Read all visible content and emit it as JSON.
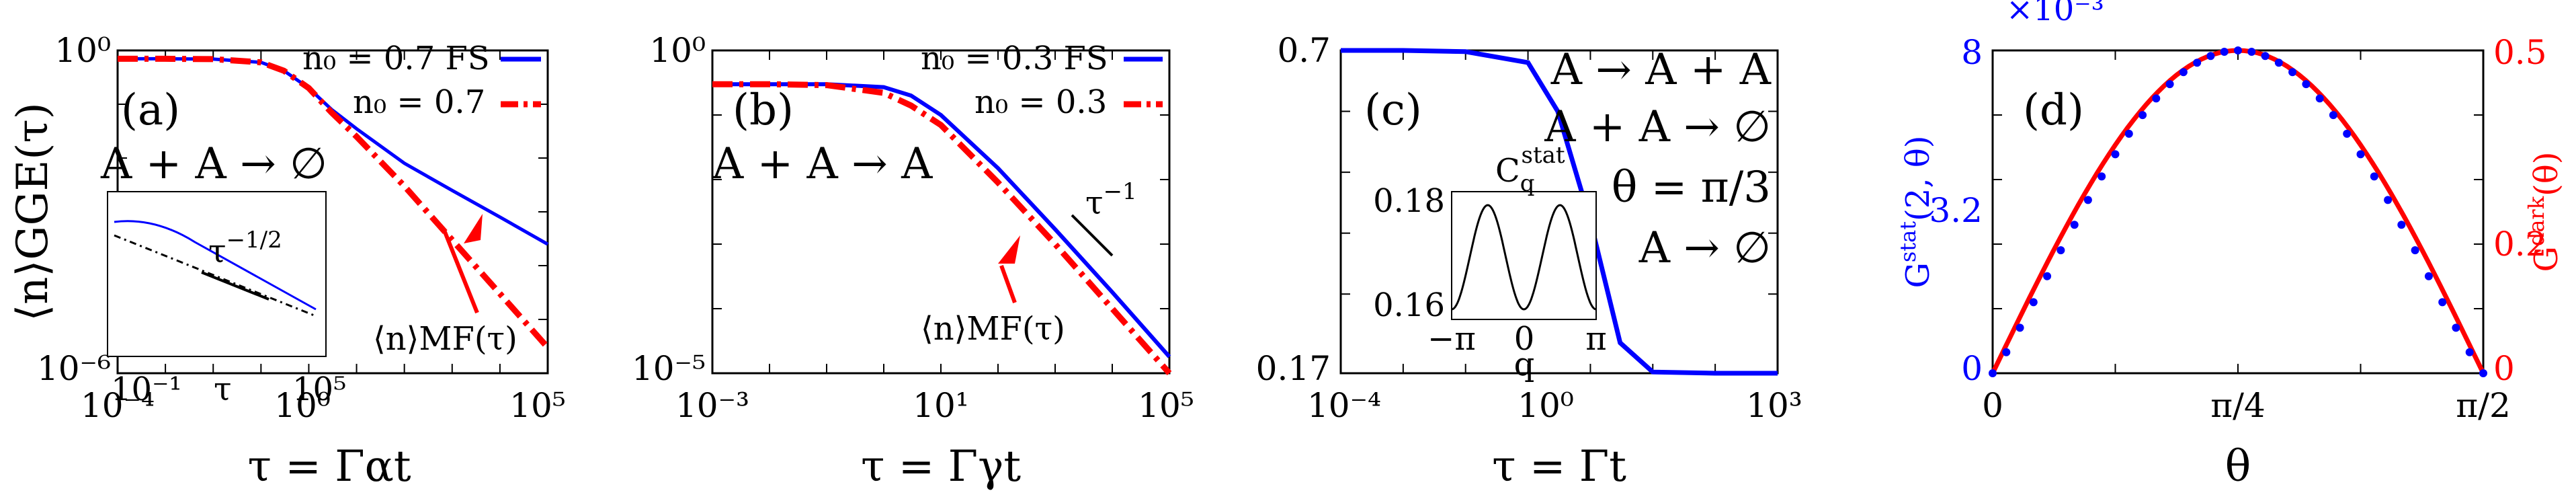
{
  "chart_data": [
    {
      "panel": "(a)",
      "type": "line",
      "scale": "log-log",
      "xlabel": "τ = Γαt",
      "ylabel": "⟨n⟩GGE(τ)",
      "xlim": [
        0.0001,
        100000
      ],
      "ylim": [
        1e-06,
        1
      ],
      "xticks": [
        "10⁻⁴",
        "10⁰",
        "10⁵"
      ],
      "yticks": [
        "10⁰",
        "10⁻⁶"
      ],
      "reaction": "A + A → ∅",
      "series": [
        {
          "name": "n₀ = 0.7 FS",
          "color": "#0000ff",
          "style": "solid",
          "x": [
            0.0001,
            0.001,
            0.01,
            0.1,
            0.3,
            1,
            3,
            10,
            100,
            1000,
            10000,
            100000
          ],
          "y": [
            0.7,
            0.7,
            0.69,
            0.6,
            0.42,
            0.2,
            0.08,
            0.035,
            0.008,
            0.0025,
            0.0008,
            0.00025
          ]
        },
        {
          "name": "n₀ = 0.7",
          "color": "#ff0000",
          "style": "dash-dot",
          "x": [
            0.0001,
            0.001,
            0.01,
            0.1,
            0.3,
            1,
            3,
            10,
            100,
            1000,
            10000,
            100000
          ],
          "y": [
            0.7,
            0.7,
            0.69,
            0.6,
            0.42,
            0.2,
            0.07,
            0.025,
            0.003,
            0.0003,
            3e-05,
            3e-06
          ]
        }
      ],
      "annotation": "⟨n⟩MF(τ)",
      "inset": {
        "xlabel": "τ",
        "xticks": [
          "10⁻¹",
          "10⁵"
        ],
        "slope_label": "τ^(-1/2)"
      }
    },
    {
      "panel": "(b)",
      "type": "line",
      "scale": "log-log",
      "xlabel": "τ = Γγt",
      "xlim": [
        0.001,
        100000
      ],
      "ylim": [
        1e-05,
        1
      ],
      "xticks": [
        "10⁻³",
        "10¹",
        "10⁵"
      ],
      "yticks": [
        "10⁰",
        "10⁻⁵"
      ],
      "reaction": "A + A → A",
      "series": [
        {
          "name": "n₀ = 0.3 FS",
          "color": "#0000ff",
          "style": "solid",
          "x": [
            0.001,
            0.01,
            0.1,
            1,
            3,
            10,
            100,
            1000,
            10000,
            100000
          ],
          "y": [
            0.3,
            0.3,
            0.3,
            0.27,
            0.2,
            0.1,
            0.015,
            0.0017,
            0.00018,
            1.8e-05
          ]
        },
        {
          "name": "n₀ = 0.3",
          "color": "#ff0000",
          "style": "dash-dot",
          "x": [
            0.001,
            0.01,
            0.1,
            1,
            3,
            10,
            100,
            1000,
            10000,
            100000
          ],
          "y": [
            0.3,
            0.3,
            0.29,
            0.22,
            0.14,
            0.07,
            0.009,
            0.001,
            0.0001,
            1e-05
          ]
        }
      ],
      "annotation": "⟨n⟩MF(τ)",
      "slope_label": "τ^(-1)"
    },
    {
      "panel": "(c)",
      "type": "line",
      "scale": "log-x",
      "xlabel": "τ = Γt",
      "xlim": [
        0.0001,
        1000
      ],
      "ylim": [
        0.17,
        0.7
      ],
      "xticks": [
        "10⁻⁴",
        "10⁰",
        "10³"
      ],
      "yticks": [
        "0.7",
        "0.17"
      ],
      "reactions": [
        "A → A + A",
        "A + A → ∅",
        "A → ∅"
      ],
      "theta_label": "θ = π/3",
      "series": [
        {
          "name": "",
          "color": "#0000ff",
          "style": "solid",
          "x": [
            0.0001,
            0.001,
            0.01,
            0.1,
            0.3,
            1,
            3,
            10,
            100,
            1000
          ],
          "y": [
            0.7,
            0.7,
            0.698,
            0.68,
            0.6,
            0.42,
            0.22,
            0.172,
            0.17,
            0.17
          ]
        }
      ],
      "inset": {
        "title": "C_q^stat",
        "xlabel": "q",
        "xticks": [
          "−π",
          "0",
          "π"
        ],
        "yticks": [
          "0.18",
          "0.16"
        ]
      }
    },
    {
      "panel": "(d)",
      "type": "line",
      "xlabel": "θ",
      "ylabel_left": "G^stat(2, θ)",
      "ylabel_right": "G^dark(θ)",
      "xlim": [
        0,
        1.5708
      ],
      "ylim_left": [
        0,
        0.008
      ],
      "ylim_right": [
        0,
        0.5
      ],
      "xticks": [
        "0",
        "π/4",
        "π/2"
      ],
      "yticks_left": [
        "0",
        "3.2",
        "8"
      ],
      "yticks_right": [
        "0",
        "0.2",
        "0.5"
      ],
      "left_exponent": "×10⁻³",
      "series": [
        {
          "name": "",
          "color": "#0000ff",
          "style": "dotted",
          "axis": "left",
          "x": [
            0,
            0.196,
            0.393,
            0.589,
            0.785,
            0.982,
            1.178,
            1.374,
            1.571
          ],
          "y": [
            0,
            0.00306,
            0.00566,
            0.00739,
            0.008,
            0.00739,
            0.00566,
            0.00306,
            0
          ]
        },
        {
          "name": "",
          "color": "#ff0000",
          "style": "solid",
          "axis": "right",
          "x": [
            0,
            0.196,
            0.393,
            0.589,
            0.785,
            0.982,
            1.178,
            1.374,
            1.571
          ],
          "y": [
            0,
            0.191,
            0.354,
            0.462,
            0.5,
            0.462,
            0.354,
            0.191,
            0
          ]
        }
      ]
    }
  ]
}
